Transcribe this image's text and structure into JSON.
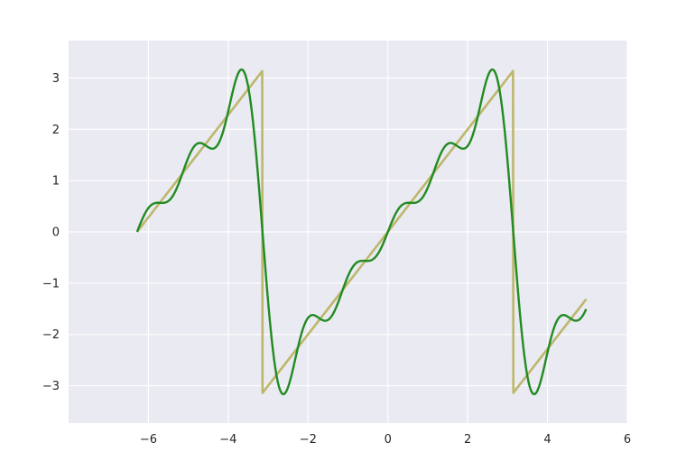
{
  "chart_data": {
    "type": "line",
    "title": "",
    "xlabel": "",
    "ylabel": "",
    "xlim": [
      -8.0,
      6.0
    ],
    "ylim": [
      -3.73,
      3.73
    ],
    "grid": true,
    "legend": "none",
    "x_ticks": [
      -6,
      -4,
      -2,
      0,
      2,
      4,
      6
    ],
    "x_tick_labels": [
      "−6",
      "−4",
      "−2",
      "0",
      "2",
      "4",
      "6"
    ],
    "y_ticks": [
      -3,
      -2,
      -1,
      0,
      1,
      2,
      3
    ],
    "y_tick_labels": [
      "−3",
      "−2",
      "−1",
      "0",
      "1",
      "2",
      "3"
    ],
    "x_range": [
      -6.2832,
      4.9686
    ],
    "series": [
      {
        "description": "sawtooth: x wrapped into (-pi, pi]",
        "color": "#bcb76b",
        "kind": "sawtooth"
      },
      {
        "description": "Fourier series partial sum, 5 harmonics",
        "color": "#228b22",
        "kind": "fourier",
        "harmonics": 5
      }
    ],
    "colors": {
      "plot_background": "#eaeaf2",
      "grid": "#ffffff",
      "figure_background": "#ffffff"
    }
  }
}
